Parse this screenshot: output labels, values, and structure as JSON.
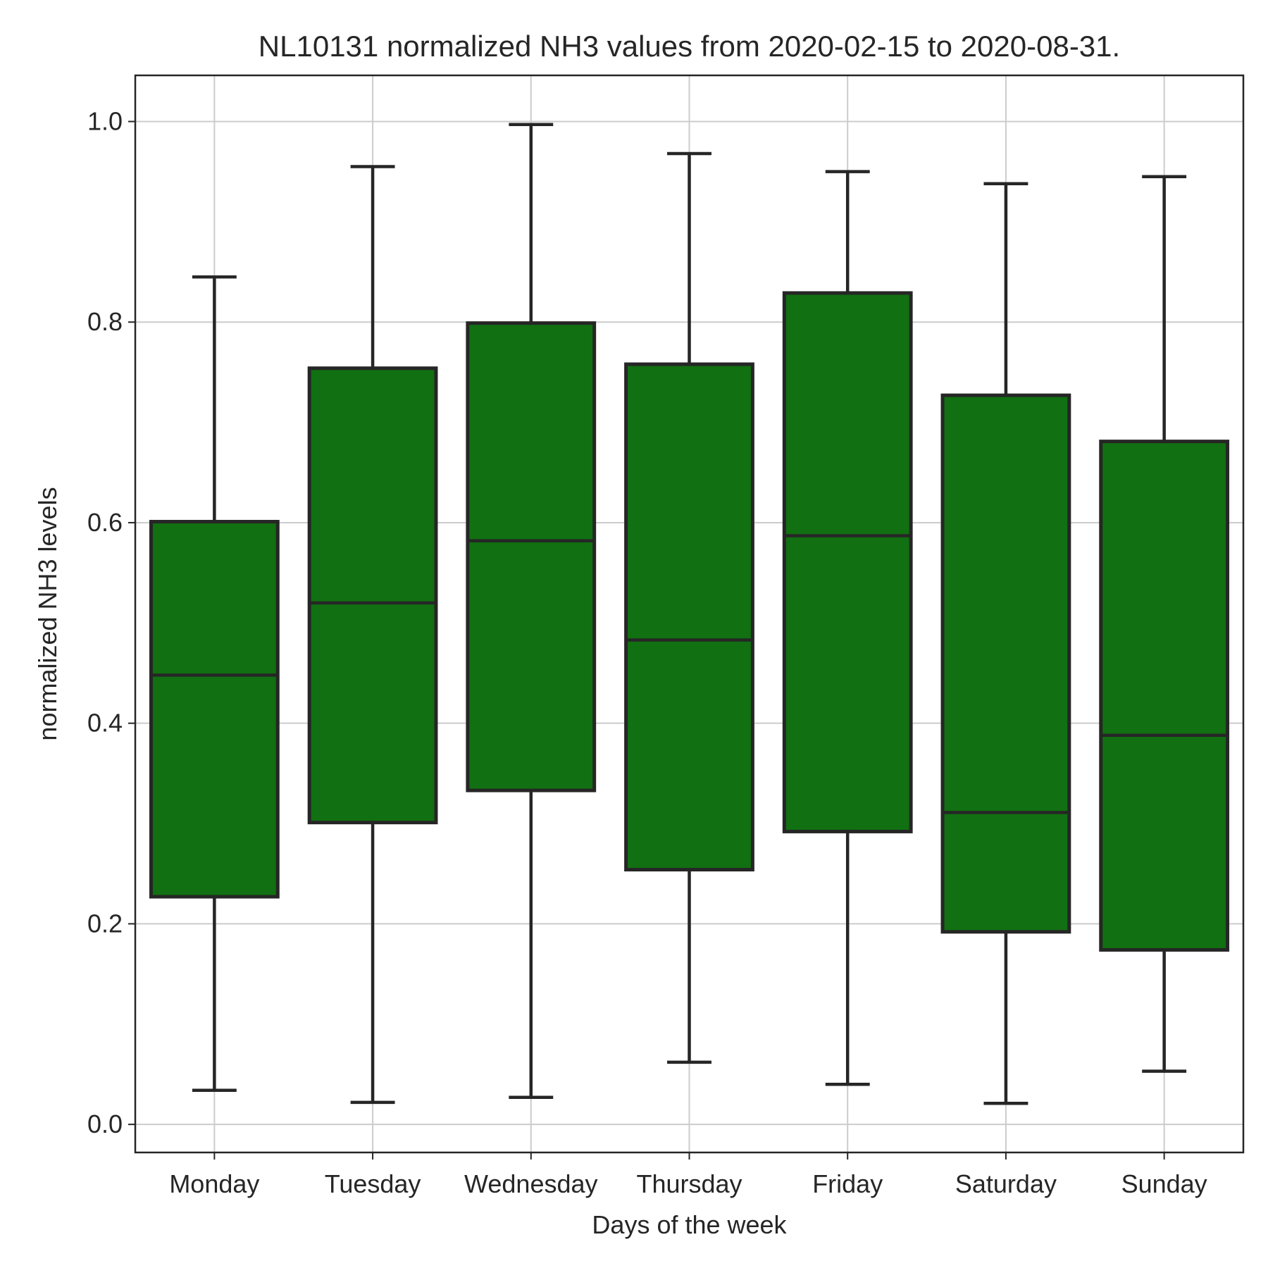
{
  "chart_data": {
    "type": "box",
    "title": "NL10131 normalized NH3 values from 2020-02-15 to 2020-08-31.",
    "xlabel": "Days of the week",
    "ylabel": "normalized NH3 levels",
    "ylim": [
      -0.028,
      1.046
    ],
    "yticks": [
      0.0,
      0.2,
      0.4,
      0.6,
      0.8,
      1.0
    ],
    "ytick_labels": [
      "0.0",
      "0.2",
      "0.4",
      "0.6",
      "0.8",
      "1.0"
    ],
    "grid": true,
    "box_color": "#117011",
    "edge_color": "#262626",
    "categories": [
      "Monday",
      "Tuesday",
      "Wednesday",
      "Thursday",
      "Friday",
      "Saturday",
      "Sunday"
    ],
    "boxes": [
      {
        "whisker_low": 0.034,
        "q1": 0.227,
        "median": 0.448,
        "q3": 0.601,
        "whisker_high": 0.845
      },
      {
        "whisker_low": 0.022,
        "q1": 0.301,
        "median": 0.52,
        "q3": 0.754,
        "whisker_high": 0.955
      },
      {
        "whisker_low": 0.027,
        "q1": 0.333,
        "median": 0.582,
        "q3": 0.799,
        "whisker_high": 0.997
      },
      {
        "whisker_low": 0.062,
        "q1": 0.254,
        "median": 0.483,
        "q3": 0.758,
        "whisker_high": 0.968
      },
      {
        "whisker_low": 0.04,
        "q1": 0.292,
        "median": 0.587,
        "q3": 0.829,
        "whisker_high": 0.95
      },
      {
        "whisker_low": 0.021,
        "q1": 0.192,
        "median": 0.311,
        "q3": 0.727,
        "whisker_high": 0.938
      },
      {
        "whisker_low": 0.053,
        "q1": 0.174,
        "median": 0.388,
        "q3": 0.681,
        "whisker_high": 0.945
      }
    ]
  }
}
